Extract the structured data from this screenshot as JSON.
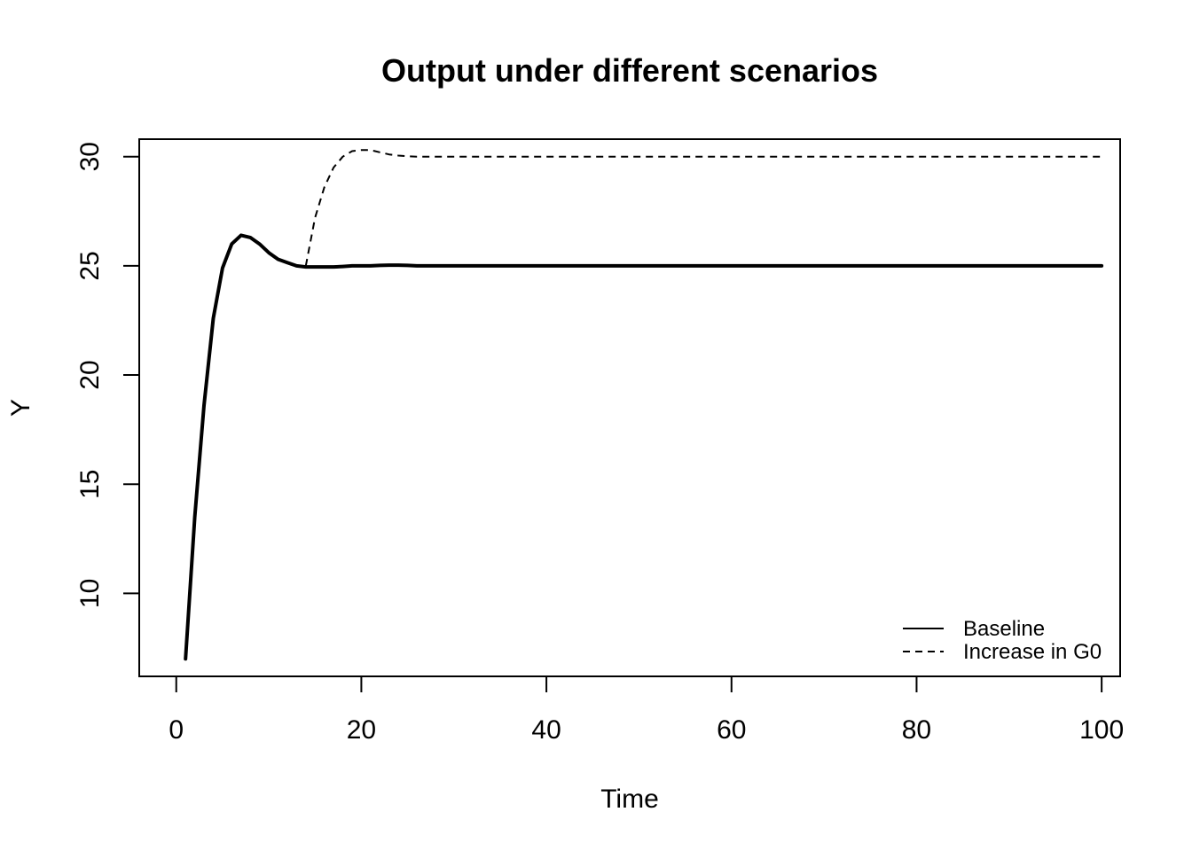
{
  "chart_data": {
    "type": "line",
    "title": "Output under different scenarios",
    "xlabel": "Time",
    "ylabel": "Y",
    "xlim": [
      -4,
      102
    ],
    "ylim": [
      6.2,
      30.8
    ],
    "xticks": [
      0,
      20,
      40,
      60,
      80,
      100
    ],
    "yticks": [
      10,
      15,
      20,
      25,
      30
    ],
    "grid": false,
    "legend_position": "bottom-right",
    "series": [
      {
        "name": "Baseline",
        "style": "solid",
        "color": "#000000",
        "x": [
          1,
          2,
          3,
          4,
          5,
          6,
          7,
          8,
          9,
          10,
          11,
          12,
          13,
          14,
          15,
          16,
          17,
          18,
          19,
          20,
          21,
          22,
          23,
          24,
          25,
          26,
          30,
          40,
          50,
          60,
          70,
          80,
          90,
          100
        ],
        "y": [
          7.0,
          13.5,
          18.6,
          22.6,
          24.9,
          26.0,
          26.4,
          26.3,
          26.0,
          25.6,
          25.3,
          25.15,
          25.0,
          24.95,
          24.95,
          24.95,
          24.95,
          24.97,
          25.0,
          25.0,
          25.0,
          25.02,
          25.03,
          25.03,
          25.02,
          25.0,
          25.0,
          25.0,
          25.0,
          25.0,
          25.0,
          25.0,
          25.0,
          25.0
        ]
      },
      {
        "name": "Increase in G0",
        "style": "dashed",
        "color": "#000000",
        "x": [
          14,
          15,
          16,
          17,
          18,
          19,
          20,
          21,
          22,
          23,
          24,
          25,
          26,
          27,
          28,
          30,
          40,
          50,
          60,
          70,
          80,
          90,
          100
        ],
        "y": [
          25.0,
          27.2,
          28.6,
          29.5,
          30.0,
          30.25,
          30.3,
          30.3,
          30.2,
          30.1,
          30.05,
          30.02,
          30.0,
          30.0,
          30.0,
          30.0,
          30.0,
          30.0,
          30.0,
          30.0,
          30.0,
          30.0,
          30.0
        ]
      }
    ]
  }
}
